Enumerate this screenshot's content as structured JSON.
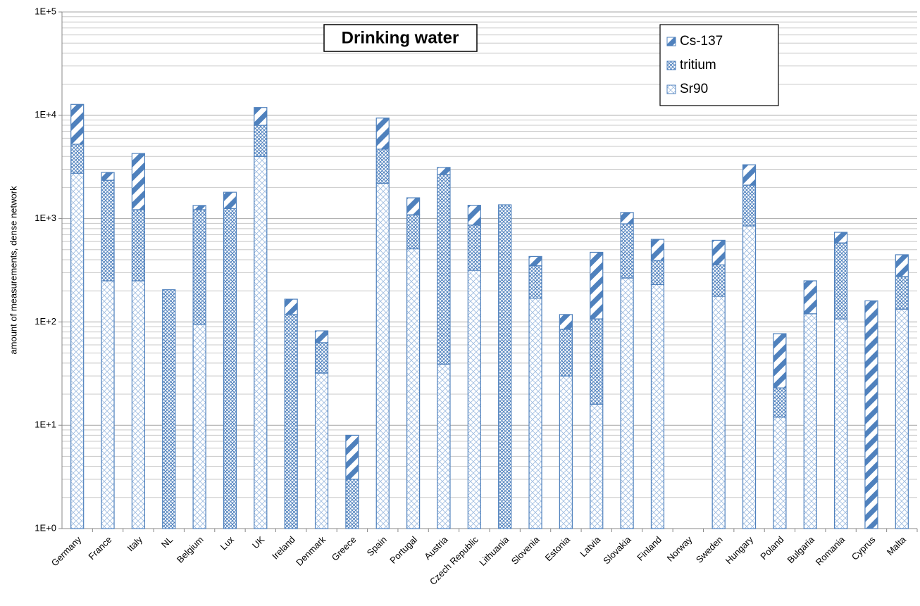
{
  "chart_data": {
    "type": "stacked-bar",
    "title": "Drinking water",
    "y_label": "amount of measurements, dense network",
    "log_scale": true,
    "grid": true,
    "minor_grid": true,
    "legend": "top-right",
    "categories": [
      "Germany",
      "France",
      "Italy",
      "NL",
      "Belgium",
      "Lux",
      "UK",
      "Ireland",
      "Denmark",
      "Greece",
      "Spain",
      "Portugal",
      "Austria",
      "Czech Republic",
      "Lithuania",
      "Slovenia",
      "Estonia",
      "Latvia",
      "Slovakia",
      "Finland",
      "Norway",
      "Sweden",
      "Hungary",
      "Poland",
      "Bulgaria",
      "Romania",
      "Cyprus",
      "Malta"
    ],
    "series": [
      {
        "name": "Sr90",
        "color": "#4f81bd",
        "pattern": "light-cross",
        "values": [
          2750,
          250,
          250,
          0,
          95,
          0,
          4000,
          0,
          32,
          0,
          2200,
          510,
          39,
          316,
          0,
          170,
          30,
          16,
          266,
          230,
          0,
          177,
          850,
          12,
          120,
          107,
          0,
          133
        ]
      },
      {
        "name": "tritium",
        "color": "#4f81bd",
        "pattern": "dense-cross",
        "values": [
          2500,
          2100,
          970,
          205,
          1125,
          1250,
          4000,
          118,
          31,
          3,
          2500,
          580,
          2630,
          550,
          1360,
          180,
          55,
          91,
          625,
          165,
          0,
          180,
          1260,
          11,
          0,
          475,
          0,
          142
        ]
      },
      {
        "name": "Cs-137",
        "color": "#4f81bd",
        "pattern": "diagonal",
        "values": [
          7500,
          450,
          3050,
          0,
          120,
          550,
          3900,
          48,
          19,
          5,
          4700,
          500,
          460,
          480,
          0,
          80,
          33,
          365,
          255,
          235,
          0,
          260,
          1210,
          54,
          130,
          155,
          160,
          172
        ]
      }
    ],
    "ylim": [
      1,
      100000
    ],
    "yticks": [
      {
        "value": 1,
        "label": "1E+0"
      },
      {
        "value": 10,
        "label": "1E+1"
      },
      {
        "value": 100,
        "label": "1E+2"
      },
      {
        "value": 1000,
        "label": "1E+3"
      },
      {
        "value": 10000,
        "label": "1E+4"
      },
      {
        "value": 100000,
        "label": "1E+5"
      }
    ]
  }
}
